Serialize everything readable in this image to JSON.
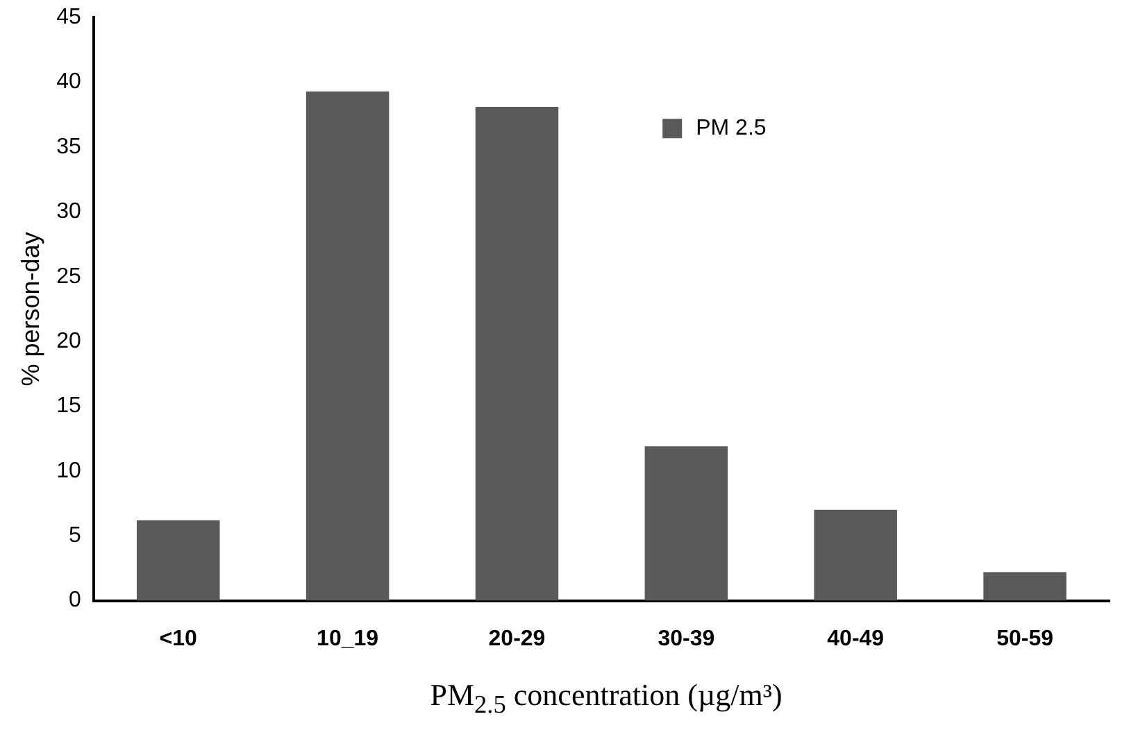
{
  "chart_data": {
    "type": "bar",
    "xlabel": "PM$_{2.5}$ concentration (µg/m³)",
    "ylabel": "% person-day",
    "categories": [
      "<10",
      "10_19",
      "20-29",
      "30-39",
      "40-49",
      "50-59"
    ],
    "series": [
      {
        "name": "PM 2.5",
        "color": "#595959",
        "values": [
          6.2,
          39.3,
          38.1,
          11.9,
          7.0,
          2.2
        ]
      }
    ],
    "ylim": [
      0,
      45
    ],
    "yticks": [
      0,
      5,
      10,
      15,
      20,
      25,
      30,
      35,
      40,
      45
    ],
    "grid": false,
    "legend": "top right"
  }
}
